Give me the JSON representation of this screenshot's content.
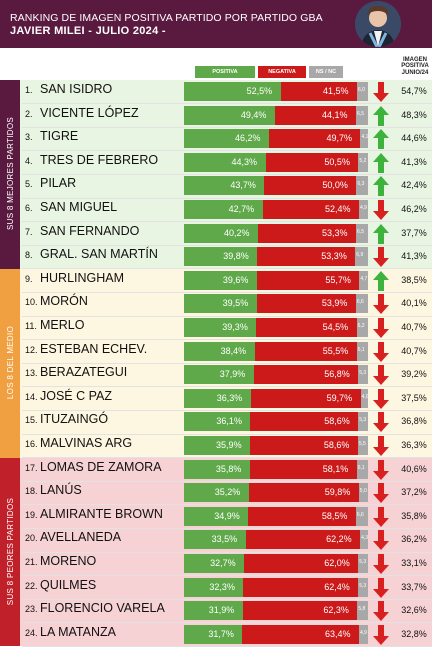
{
  "header": {
    "title": "RANKING DE IMAGEN POSITIVA PARTIDO POR PARTIDO GBA",
    "subtitle": "JAVIER MILEI - JULIO 2024 -"
  },
  "legend": {
    "positive": "POSITIVA",
    "negative": "NEGATIVA",
    "ns": "NS / NC"
  },
  "image_column_header": "IMAGEN POSITIVA JUNIO/24",
  "sections": [
    {
      "label": "SUS 8 MEJORES PARTIDOS",
      "color": "#5a1a40",
      "band": "#e9f5e3",
      "from": 0,
      "to": 8
    },
    {
      "label": "LOS 8 DEL MEDIO",
      "color": "#f0a040",
      "band": "#fdf6e0",
      "from": 8,
      "to": 16
    },
    {
      "label": "SUS 8 PEORES PARTIDOS",
      "color": "#c0202a",
      "band": "#f6d2d4",
      "from": 16,
      "to": 24
    }
  ],
  "colors": {
    "positive": "#5fa94a",
    "negative": "#cc1a1a",
    "ns": "#a8a8a8",
    "arrow_up": "#3db33d",
    "arrow_down": "#d92020"
  },
  "chart_data": {
    "type": "bar",
    "title": "RANKING DE IMAGEN POSITIVA PARTIDO POR PARTIDO GBA",
    "subtitle": "JAVIER MILEI - JULIO 2024 -",
    "categories": [
      "SAN ISIDRO",
      "VICENTE LÓPEZ",
      "TIGRE",
      "TRES DE FEBRERO",
      "PILAR",
      "SAN MIGUEL",
      "SAN FERNANDO",
      "GRAL. SAN MARTÍN",
      "HURLINGHAM",
      "MORÓN",
      "MERLO",
      "ESTEBAN ECHEV.",
      "BERAZATEGUI",
      "JOSÉ C PAZ",
      "ITUZAINGÓ",
      "MALVINAS ARG",
      "LOMAS DE ZAMORA",
      "LANÚS",
      "ALMIRANTE BROWN",
      "AVELLANEDA",
      "MORENO",
      "QUILMES",
      "FLORENCIO VARELA",
      "LA MATANZA"
    ],
    "series": [
      {
        "name": "POSITIVA",
        "values": [
          52.5,
          49.4,
          46.2,
          44.3,
          43.7,
          42.7,
          40.2,
          39.8,
          39.6,
          39.5,
          39.3,
          38.4,
          37.9,
          36.3,
          36.1,
          35.9,
          35.8,
          35.2,
          34.9,
          33.5,
          32.7,
          32.3,
          31.9,
          31.7
        ]
      },
      {
        "name": "NEGATIVA",
        "values": [
          41.5,
          44.1,
          49.7,
          50.5,
          50.0,
          52.4,
          53.3,
          53.3,
          55.7,
          53.9,
          54.5,
          55.5,
          56.8,
          59.7,
          58.6,
          58.6,
          58.1,
          59.8,
          58.5,
          62.2,
          62.0,
          62.4,
          62.3,
          63.4
        ]
      },
      {
        "name": "NS / NC",
        "values": [
          6.0,
          6.5,
          4.1,
          5.2,
          6.3,
          4.9,
          6.5,
          6.9,
          4.7,
          6.6,
          6.2,
          6.1,
          5.3,
          4.0,
          5.3,
          5.5,
          6.1,
          5.0,
          6.6,
          4.3,
          5.3,
          5.3,
          5.8,
          4.9
        ]
      }
    ],
    "ranks": [
      "1.",
      "2.",
      "3.",
      "4.",
      "5.",
      "6.",
      "7.",
      "8.",
      "9.",
      "10.",
      "11.",
      "12.",
      "13.",
      "14.",
      "15.",
      "16.",
      "17.",
      "18.",
      "19.",
      "20.",
      "21.",
      "22.",
      "23.",
      "24."
    ],
    "positive_labels": [
      "52,5%",
      "49,4%",
      "46,2%",
      "44,3%",
      "43,7%",
      "42,7%",
      "40,2%",
      "39,8%",
      "39,6%",
      "39,5%",
      "39,3%",
      "38,4%",
      "37,9%",
      "36,3%",
      "36,1%",
      "35,9%",
      "35,8%",
      "35,2%",
      "34,9%",
      "33,5%",
      "32,7%",
      "32,3%",
      "31,9%",
      "31,7%"
    ],
    "negative_labels": [
      "41,5%",
      "44,1%",
      "49,7%",
      "50,5%",
      "50,0%",
      "52,4%",
      "53,3%",
      "53,3%",
      "55,7%",
      "53,9%",
      "54,5%",
      "55,5%",
      "56,8%",
      "59,7%",
      "58,6%",
      "58,6%",
      "58,1%",
      "59,8%",
      "58,5%",
      "62,2%",
      "62,0%",
      "62,4%",
      "62,3%",
      "63,4%"
    ],
    "ns_labels": [
      "6,0",
      "6,5",
      "4,1",
      "5,2",
      "6,3",
      "4,9",
      "6,5",
      "6,9",
      "4,7",
      "6,6",
      "6,2",
      "6,1",
      "5,3",
      "4,0",
      "5,3",
      "5,5",
      "6,1",
      "5,0",
      "6,6",
      "4,3",
      "5,3",
      "5,3",
      "5,8",
      "4,9"
    ],
    "trend": [
      "down",
      "up",
      "up",
      "up",
      "up",
      "down",
      "up",
      "down",
      "up",
      "down",
      "down",
      "down",
      "down",
      "down",
      "down",
      "down",
      "down",
      "down",
      "down",
      "down",
      "down",
      "down",
      "down",
      "down"
    ],
    "image_junio_24": [
      "54,7%",
      "48,3%",
      "44,6%",
      "41,3%",
      "42,4%",
      "46,2%",
      "37,7%",
      "41,3%",
      "38,5%",
      "40,1%",
      "40,7%",
      "40,7%",
      "39,2%",
      "37,5%",
      "36,8%",
      "36,3%",
      "40,6%",
      "37,2%",
      "35,8%",
      "36,2%",
      "33,1%",
      "33,7%",
      "32,6%",
      "32,8%"
    ],
    "xlim": [
      0,
      100
    ]
  }
}
